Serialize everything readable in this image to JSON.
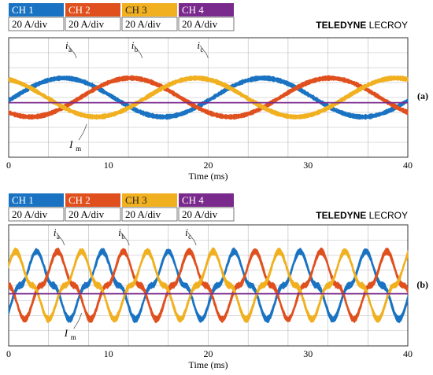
{
  "colors": {
    "ch1": "#1a73c2",
    "ch2": "#e0501e",
    "ch3": "#f0b020",
    "ch4": "#7a2a8c",
    "grid": "#b8b8b8"
  },
  "brand": {
    "bold": "TELEDYNE",
    "light": "LECROY"
  },
  "chart_data": [
    {
      "type": "line",
      "panel_tag": "(a)",
      "xlabel": "Time (ms)",
      "xlim": [
        0,
        40
      ],
      "xticks": [
        "0",
        "10",
        "20",
        "30",
        "40"
      ],
      "channels": [
        {
          "label": "CH 1",
          "scale": "20 A/div"
        },
        {
          "label": "CH 2",
          "scale": "20 A/div"
        },
        {
          "label": "CH 3",
          "scale": "20 A/div"
        },
        {
          "label": "CH 4",
          "scale": "20 A/div"
        }
      ],
      "annotations": [
        {
          "text": "i",
          "sub": "a",
          "x": 6.0
        },
        {
          "text": "i",
          "sub": "b",
          "x": 12.6
        },
        {
          "text": "i",
          "sub": "c",
          "x": 19.2
        },
        {
          "text": "I",
          "sub": "m",
          "x": 7.5
        }
      ],
      "series": [
        {
          "name": "i_a",
          "channel": "CH 1",
          "waveform": "sinusoid",
          "period_ms": 20.0,
          "peak_ms": 5.5,
          "amplitude_div": 1.3,
          "offset_div": 0.0,
          "noise_div": 0.18
        },
        {
          "name": "i_b",
          "channel": "CH 2",
          "waveform": "sinusoid",
          "period_ms": 20.0,
          "peak_ms": 12.2,
          "amplitude_div": 1.3,
          "offset_div": 0.0,
          "noise_div": 0.18
        },
        {
          "name": "i_c",
          "channel": "CH 3",
          "waveform": "sinusoid",
          "period_ms": 20.0,
          "peak_ms": 18.8,
          "amplitude_div": 1.3,
          "offset_div": 0.0,
          "noise_div": 0.18
        },
        {
          "name": "I_m",
          "channel": "CH 4",
          "waveform": "dc",
          "offset_div": -0.35
        }
      ]
    },
    {
      "type": "line",
      "panel_tag": "(b)",
      "xlabel": "Time (ms)",
      "xlim": [
        0,
        40
      ],
      "xticks": [
        "0",
        "10",
        "20",
        "30",
        "40"
      ],
      "channels": [
        {
          "label": "CH 1",
          "scale": "20 A/div"
        },
        {
          "label": "CH 2",
          "scale": "20 A/div"
        },
        {
          "label": "CH 3",
          "scale": "20 A/div"
        },
        {
          "label": "CH 4",
          "scale": "20 A/div"
        }
      ],
      "annotations": [
        {
          "text": "i",
          "sub": "a",
          "x": 4.8
        },
        {
          "text": "i",
          "sub": "b",
          "x": 11.3
        },
        {
          "text": "i",
          "sub": "c",
          "x": 18.0
        },
        {
          "text": "I",
          "sub": "m",
          "x": 7.0
        }
      ],
      "series": [
        {
          "name": "i_a",
          "channel": "CH 1",
          "waveform": "pulsed",
          "period_ms": 6.6,
          "peak_ms": 2.8,
          "amplitude_div": 2.5,
          "offset_div": 0.0,
          "noise_div": 0.25
        },
        {
          "name": "i_b",
          "channel": "CH 2",
          "waveform": "pulsed",
          "period_ms": 6.6,
          "peak_ms": 4.9,
          "amplitude_div": 2.5,
          "offset_div": 0.0,
          "noise_div": 0.25
        },
        {
          "name": "i_c",
          "channel": "CH 3",
          "waveform": "pulsed",
          "period_ms": 6.6,
          "peak_ms": 0.7,
          "amplitude_div": 2.5,
          "offset_div": 0.0,
          "noise_div": 0.25
        },
        {
          "name": "I_m",
          "channel": "CH 4",
          "waveform": "dc",
          "offset_div": -0.55
        }
      ]
    }
  ]
}
